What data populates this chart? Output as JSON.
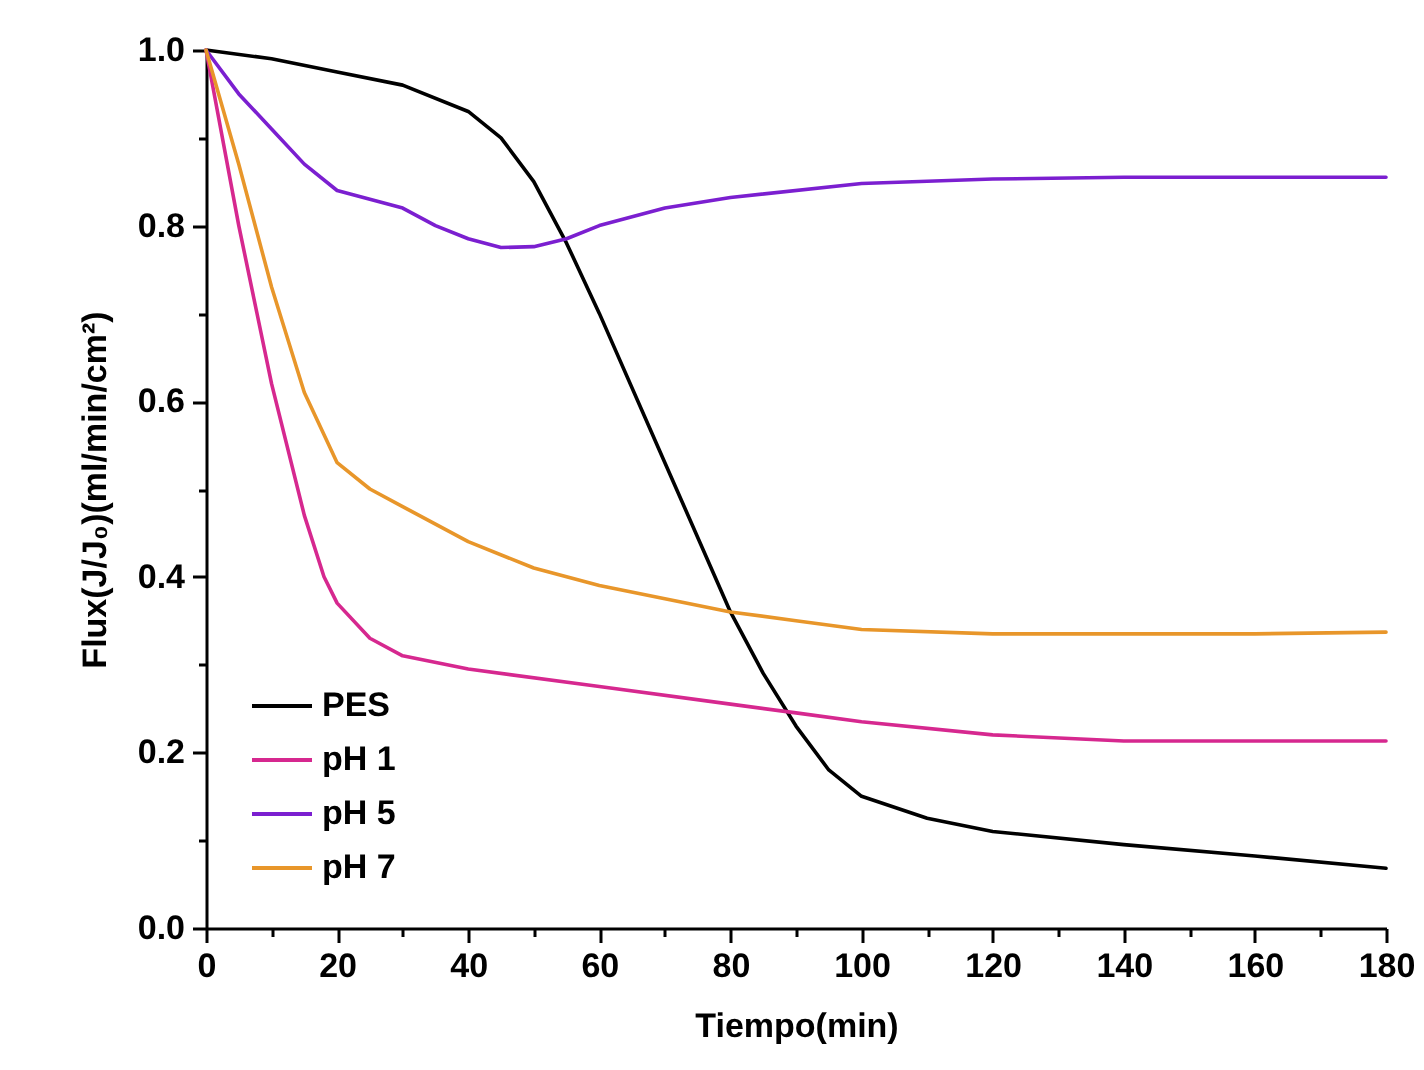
{
  "chart_data": {
    "type": "line",
    "xlabel": "Tiempo(min)",
    "ylabel": "Flux(J/J₀)(ml/min/cm²)",
    "xlim": [
      0,
      180
    ],
    "ylim": [
      0,
      1.0
    ],
    "xticks": [
      0,
      {
        "value": 10,
        "label": null
      },
      20,
      {
        "value": 30,
        "label": null
      },
      40,
      {
        "value": 50,
        "label": null
      },
      60,
      {
        "value": 70,
        "label": null
      },
      80,
      {
        "value": 90,
        "label": null
      },
      100,
      {
        "value": 110,
        "label": null
      },
      120,
      {
        "value": 130,
        "label": null
      },
      140,
      {
        "value": 150,
        "label": null
      },
      160,
      {
        "value": 170,
        "label": null
      },
      180
    ],
    "yticks": [
      {
        "value": 0,
        "label": "0.0"
      },
      {
        "value": 0.1,
        "label": null
      },
      0.2,
      {
        "value": 0.3,
        "label": null
      },
      0.4,
      {
        "value": 0.5,
        "label": null
      },
      0.6,
      {
        "value": 0.7,
        "label": null
      },
      0.8,
      {
        "value": 0.9,
        "label": null
      },
      {
        "value": 1.0,
        "label": "1.0"
      }
    ],
    "grid": false,
    "legend": "bottom left",
    "marker": "none",
    "line_style": "solid",
    "series": [
      {
        "name": "PES",
        "color": "#000000",
        "x": [
          0,
          10,
          20,
          30,
          40,
          45,
          50,
          55,
          60,
          70,
          80,
          85,
          90,
          95,
          100,
          110,
          120,
          140,
          160,
          180
        ],
        "values": [
          1.0,
          0.99,
          0.975,
          0.96,
          0.93,
          0.9,
          0.85,
          0.78,
          0.7,
          0.53,
          0.36,
          0.29,
          0.23,
          0.18,
          0.15,
          0.125,
          0.11,
          0.095,
          0.082,
          0.068
        ]
      },
      {
        "name": "pH 1",
        "color": "#d6288f",
        "x": [
          0,
          5,
          10,
          15,
          18,
          20,
          25,
          30,
          40,
          60,
          80,
          90,
          100,
          120,
          140,
          160,
          180
        ],
        "values": [
          1.0,
          0.8,
          0.62,
          0.47,
          0.4,
          0.37,
          0.33,
          0.31,
          0.295,
          0.275,
          0.255,
          0.245,
          0.235,
          0.22,
          0.213,
          0.213,
          0.213
        ]
      },
      {
        "name": "pH 5",
        "color": "#7b1fd0",
        "x": [
          0,
          5,
          10,
          15,
          20,
          30,
          35,
          40,
          45,
          50,
          55,
          60,
          70,
          80,
          100,
          120,
          140,
          180
        ],
        "values": [
          1.0,
          0.95,
          0.91,
          0.87,
          0.84,
          0.82,
          0.8,
          0.785,
          0.775,
          0.776,
          0.785,
          0.8,
          0.82,
          0.832,
          0.848,
          0.853,
          0.855,
          0.855
        ]
      },
      {
        "name": "pH 7",
        "color": "#e8962a",
        "x": [
          0,
          5,
          10,
          15,
          20,
          25,
          30,
          40,
          50,
          60,
          70,
          80,
          90,
          100,
          120,
          160,
          180
        ],
        "values": [
          1.0,
          0.87,
          0.73,
          0.61,
          0.53,
          0.5,
          0.48,
          0.44,
          0.41,
          0.39,
          0.375,
          0.36,
          0.35,
          0.34,
          0.335,
          0.335,
          0.337
        ]
      }
    ]
  }
}
